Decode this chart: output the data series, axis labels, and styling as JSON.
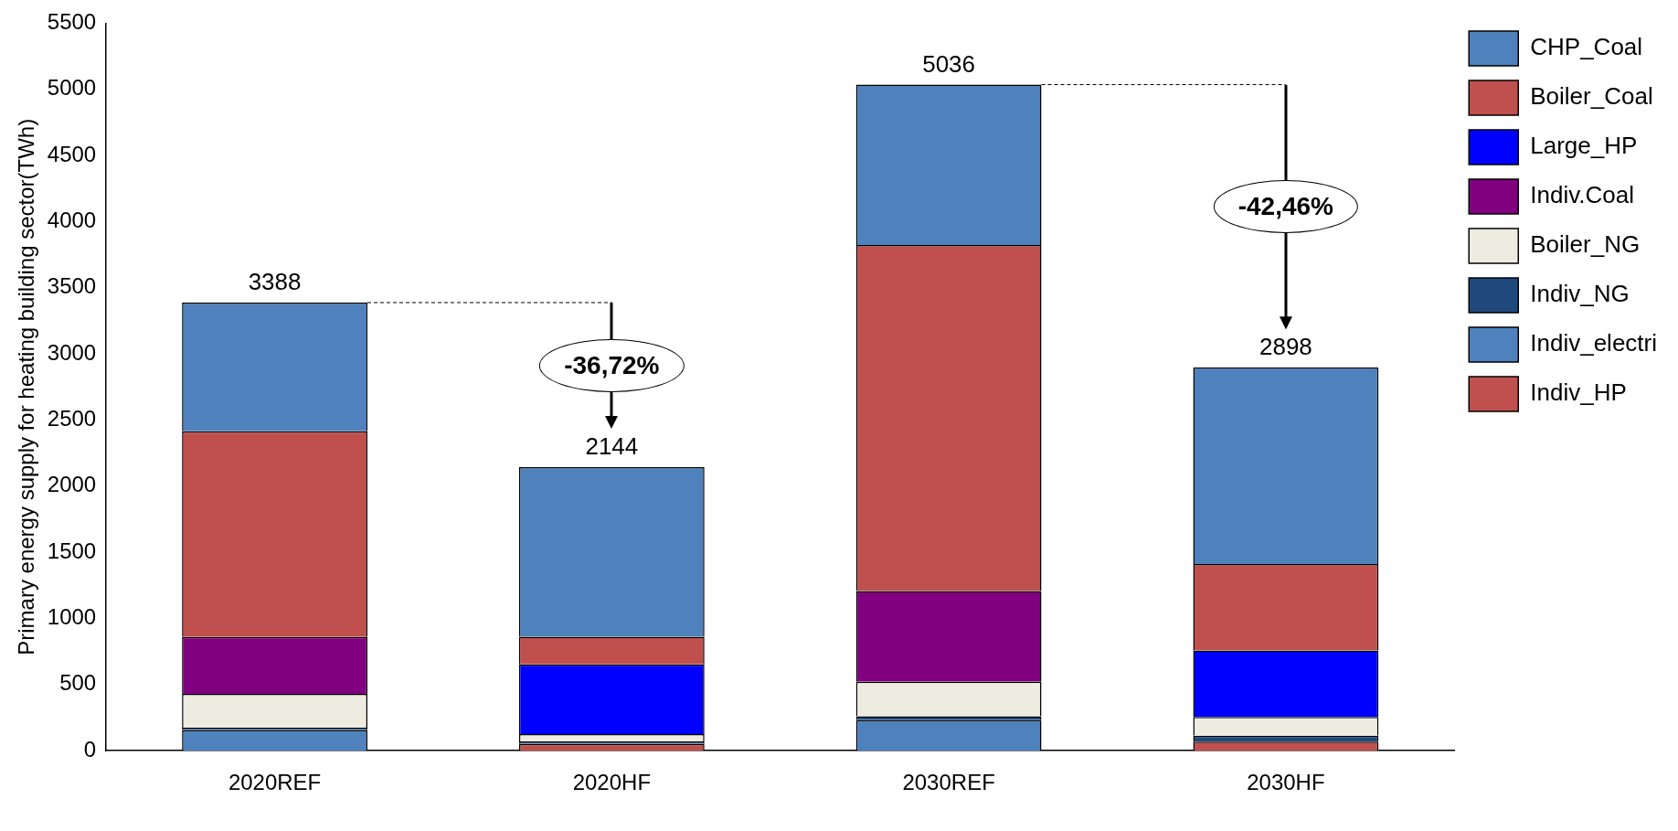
{
  "chart_data": {
    "type": "bar",
    "stacked": true,
    "ylabel": "Primary energy supply for heating building sector(TWh)",
    "categories": [
      "2020REF",
      "2020HF",
      "2030REF",
      "2030HF"
    ],
    "series": [
      {
        "name": "Indiv_HP",
        "color": "#c0504d",
        "values": [
          0,
          52,
          0,
          69
        ]
      },
      {
        "name": "Indiv_electri",
        "color": "#4f81bd",
        "values": [
          155,
          0,
          232,
          0
        ]
      },
      {
        "name": "Indiv_NG",
        "color": "#1f497d",
        "values": [
          20,
          18,
          29,
          45
        ]
      },
      {
        "name": "Boiler_NG",
        "color": "#eeece1",
        "values": [
          255,
          56,
          261,
          141
        ]
      },
      {
        "name": "Indiv.Coal",
        "color": "#800080",
        "values": [
          430,
          0,
          685,
          0
        ]
      },
      {
        "name": "Large_HP",
        "color": "#0000ff",
        "values": [
          0,
          526,
          0,
          504
        ]
      },
      {
        "name": "Boiler_Coal",
        "color": "#c0504d",
        "values": [
          1555,
          209,
          2617,
          652
        ]
      },
      {
        "name": "CHP_Coal",
        "color": "#4f81bd",
        "values": [
          973,
          1283,
          1212,
          1487
        ]
      }
    ],
    "ylim": [
      0,
      5500
    ],
    "yticks": [
      0,
      500,
      1000,
      1500,
      2000,
      2500,
      3000,
      3500,
      4000,
      4500,
      5000,
      5500
    ],
    "grid": false,
    "legend": "right",
    "totals": [
      "3388",
      "2144",
      "5036",
      "2898"
    ],
    "ref_lines": [
      {
        "axis": "y",
        "value": 3388,
        "line_style": "dashed"
      },
      {
        "axis": "y",
        "value": 5036,
        "line_style": "dashed"
      }
    ],
    "annotations": [
      "-36,72%",
      "-42,46%"
    ]
  }
}
